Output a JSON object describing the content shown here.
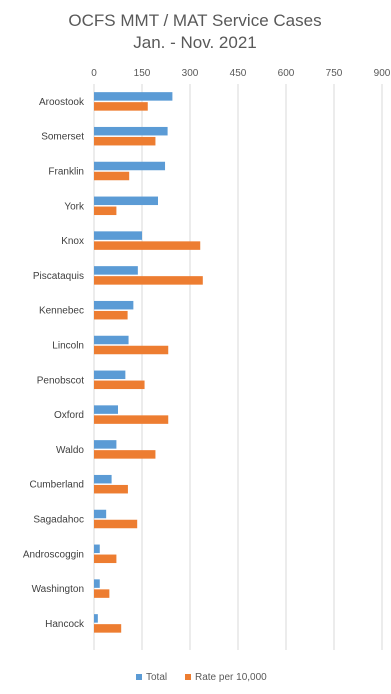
{
  "chart_data": {
    "type": "bar",
    "orientation": "horizontal",
    "title": "OCFS  MMT / MAT Service Cases",
    "subtitle": "Jan. - Nov. 2021",
    "xlabel": "",
    "ylabel": "",
    "xlim": [
      0,
      900
    ],
    "ticks": [
      "0",
      "150",
      "300",
      "450",
      "600",
      "750",
      "900"
    ],
    "grid": true,
    "legend_position": "bottom",
    "categories": [
      "Aroostook",
      "Somerset",
      "Franklin",
      "York",
      "Knox",
      "Piscataquis",
      "Kennebec",
      "Lincoln",
      "Penobscot",
      "Oxford",
      "Waldo",
      "Cumberland",
      "Sagadahoc",
      "Androscoggin",
      "Washington",
      "Hancock"
    ],
    "series": [
      {
        "name": "Total",
        "color": "#5b9bd5",
        "values": [
          245,
          230,
          222,
          200,
          150,
          137,
          123,
          108,
          98,
          75,
          70,
          55,
          38,
          18,
          18,
          12
        ]
      },
      {
        "name": "Rate per 10,000",
        "color": "#ed7d31",
        "values": [
          168,
          192,
          110,
          70,
          332,
          340,
          105,
          232,
          158,
          232,
          192,
          106,
          135,
          70,
          48,
          85
        ]
      }
    ]
  }
}
